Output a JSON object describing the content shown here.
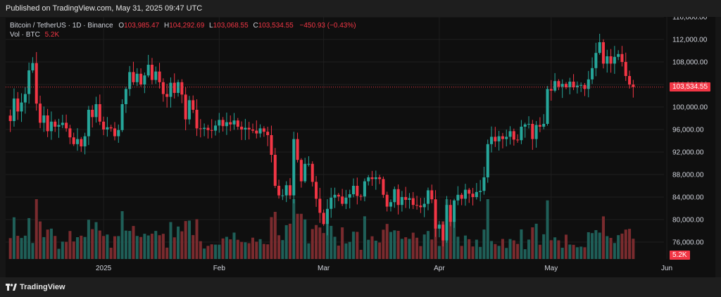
{
  "header": {
    "published": "Published on TradingView.com, May 31, 2025 09:47 UTC"
  },
  "legend": {
    "symbol": "Bitcoin / TetherUS · 1D · Binance",
    "o_label": "O",
    "o_value": "103,985.47",
    "h_label": "H",
    "h_value": "104,292.69",
    "l_label": "L",
    "l_value": "103,068.55",
    "c_label": "C",
    "c_value": "103,534.55",
    "change": "−450.93 (−0.43%)",
    "vol_label": "Vol · BTC",
    "vol_value": "5.2K"
  },
  "footer": {
    "brand": "TradingView"
  },
  "colors": {
    "up": "#26a69a",
    "down": "#f23645",
    "vol_up": "#1f5f58",
    "vol_down": "#7a2b2e",
    "grid": "#1f1f1f",
    "axis_text": "#d1d4dc"
  },
  "chart_data": {
    "type": "candlestick",
    "ylim": [
      73000,
      116000
    ],
    "y_ticks": [
      "116,000.00",
      "112,000.00",
      "108,000.00",
      "104,000.00",
      "100,000.00",
      "96,000.00",
      "92,000.00",
      "88,000.00",
      "84,000.00",
      "80,000.00",
      "76,000.00"
    ],
    "y_tick_values": [
      116000,
      112000,
      108000,
      104000,
      100000,
      96000,
      92000,
      88000,
      84000,
      80000,
      76000
    ],
    "x_ticks": [
      {
        "label": "2025",
        "index": 25
      },
      {
        "label": "Feb",
        "index": 56
      },
      {
        "label": "Mar",
        "index": 84
      },
      {
        "label": "Apr",
        "index": 115
      },
      {
        "label": "May",
        "index": 145
      },
      {
        "label": "Jun",
        "index": 176
      }
    ],
    "last_price": 103534.55,
    "last_price_label": "103,534.55",
    "last_volume_label": "5.2K",
    "closes": [
      97500,
      101500,
      99200,
      100800,
      102300,
      106500,
      107800,
      100600,
      97200,
      98500,
      95700,
      97400,
      96500,
      96800,
      97200,
      96200,
      94600,
      93400,
      94300,
      93000,
      94800,
      99500,
      98200,
      100500,
      97400,
      96000,
      96400,
      96200,
      94800,
      95900,
      100500,
      103200,
      106200,
      104400,
      105900,
      104000,
      105600,
      107500,
      104800,
      106300,
      104400,
      102300,
      101800,
      104300,
      102500,
      104400,
      102200,
      97800,
      101200,
      99500,
      96200,
      96100,
      96300,
      95900,
      95800,
      96700,
      97700,
      96600,
      97300,
      96900,
      97600,
      96500,
      96000,
      96300,
      96000,
      95800,
      95300,
      96200,
      95600,
      95000,
      91500,
      86000,
      84300,
      84300,
      86100,
      84300,
      94300,
      90600,
      86800,
      89900,
      89900,
      86700,
      83700,
      81200,
      79200,
      81900,
      83900,
      84400,
      84100,
      82800,
      83900,
      84500,
      86000,
      84200,
      84100,
      86800,
      87500,
      87200,
      87500,
      87200,
      84400,
      82300,
      83100,
      85400,
      82600,
      84000,
      83500,
      83800,
      82600,
      82500,
      82200,
      82800,
      85200,
      83600,
      78400,
      79100,
      76300,
      82600,
      79600,
      83400,
      84400,
      83700,
      85300,
      84600,
      84000,
      84900,
      85100,
      87500,
      93400,
      94700,
      93900,
      94800,
      94300,
      94700,
      95700,
      94200,
      94100,
      96500,
      96900,
      97000,
      94300,
      96800,
      96500,
      97000,
      103200,
      102900,
      104600,
      103600,
      104100,
      103500,
      104500,
      103500,
      103800,
      103900,
      103200,
      104900,
      106900,
      109600,
      111500,
      107700,
      109000,
      107700,
      108900,
      109400,
      108000,
      105500,
      103985,
      103534
    ],
    "volume_index_scale": [
      0,
      12
    ]
  }
}
